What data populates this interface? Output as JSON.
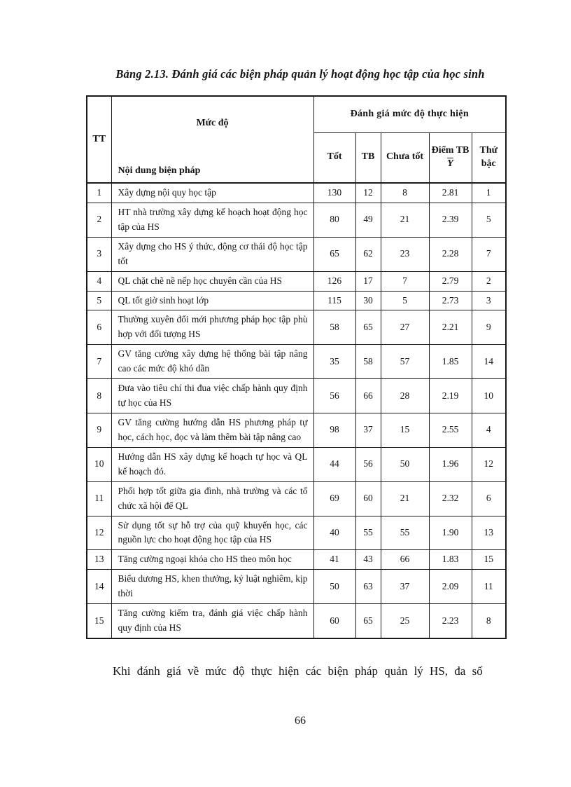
{
  "page": {
    "title": "Bảng 2.13. Đánh giá các biện pháp quản lý hoạt động học tập của học sinh",
    "closing_paragraph": "Khi đánh giá về mức độ thực hiện các biện pháp quản lý HS, đa số",
    "page_number": "66"
  },
  "table": {
    "header": {
      "tt": "TT",
      "muc_do": "Mức độ",
      "noi_dung": "Nội dung biện pháp",
      "group": "Đánh giá mức độ thực hiện",
      "tot": "Tốt",
      "tb": "TB",
      "chua_tot": "Chưa tốt",
      "diem_tb": "Điểm TB",
      "diem_tb_symbol": "Y",
      "thu_bac": "Thứ bậc"
    },
    "rows": [
      {
        "tt": "1",
        "content": "Xây dựng nội quy học tập",
        "tot": "130",
        "tb": "12",
        "chua_tot": "8",
        "diem_tb": "2.81",
        "thu_bac": "1"
      },
      {
        "tt": "2",
        "content": "HT nhà trường xây dựng kế hoạch hoạt động học tập của HS",
        "tot": "80",
        "tb": "49",
        "chua_tot": "21",
        "diem_tb": "2.39",
        "thu_bac": "5"
      },
      {
        "tt": "3",
        "content": "Xây dựng cho HS ý thức, động cơ thái độ học tập tốt",
        "tot": "65",
        "tb": "62",
        "chua_tot": "23",
        "diem_tb": "2.28",
        "thu_bac": "7"
      },
      {
        "tt": "4",
        "content": "QL chặt chẽ nề nếp học chuyên cần của HS",
        "tot": "126",
        "tb": "17",
        "chua_tot": "7",
        "diem_tb": "2.79",
        "thu_bac": "2"
      },
      {
        "tt": "5",
        "content": "QL tốt giờ sinh hoạt lớp",
        "tot": "115",
        "tb": "30",
        "chua_tot": "5",
        "diem_tb": "2.73",
        "thu_bac": "3"
      },
      {
        "tt": "6",
        "content": "Thường xuyên đổi mới phương pháp học tập phù hợp với đối tượng HS",
        "tot": "58",
        "tb": "65",
        "chua_tot": "27",
        "diem_tb": "2.21",
        "thu_bac": "9"
      },
      {
        "tt": "7",
        "content": "GV tăng cường xây dựng hệ thống bài tập nâng cao các mức độ khó dần",
        "tot": "35",
        "tb": "58",
        "chua_tot": "57",
        "diem_tb": "1.85",
        "thu_bac": "14"
      },
      {
        "tt": "8",
        "content": "Đưa vào tiêu chí thi đua việc chấp hành quy định tự học của HS",
        "tot": "56",
        "tb": "66",
        "chua_tot": "28",
        "diem_tb": "2.19",
        "thu_bac": "10"
      },
      {
        "tt": "9",
        "content": "GV tăng cường hướng dẫn HS phương pháp tự học, cách học, đọc và làm thêm bài tập nâng cao",
        "tot": "98",
        "tb": "37",
        "chua_tot": "15",
        "diem_tb": "2.55",
        "thu_bac": "4"
      },
      {
        "tt": "10",
        "content": "Hướng dẫn HS xây dựng kế hoạch tự học và QL kế hoạch đó.",
        "tot": "44",
        "tb": "56",
        "chua_tot": "50",
        "diem_tb": "1.96",
        "thu_bac": "12"
      },
      {
        "tt": "11",
        "content": "Phối hợp tốt giữa gia đình, nhà trường và các tổ chức xã hội để QL",
        "tot": "69",
        "tb": "60",
        "chua_tot": "21",
        "diem_tb": "2.32",
        "thu_bac": "6"
      },
      {
        "tt": "12",
        "content": "Sử dụng tốt sự hỗ trợ của quỹ khuyến học, các nguồn lực cho hoạt động học tập của HS",
        "tot": "40",
        "tb": "55",
        "chua_tot": "55",
        "diem_tb": "1.90",
        "thu_bac": "13"
      },
      {
        "tt": "13",
        "content": "Tăng cường ngoại khóa cho HS theo môn học",
        "tot": "41",
        "tb": "43",
        "chua_tot": "66",
        "diem_tb": "1.83",
        "thu_bac": "15"
      },
      {
        "tt": "14",
        "content": "Biểu dương HS, khen thưởng, kỷ luật nghiêm, kịp thời",
        "tot": "50",
        "tb": "63",
        "chua_tot": "37",
        "diem_tb": "2.09",
        "thu_bac": "11"
      },
      {
        "tt": "15",
        "content": "Tăng cường kiểm tra, đánh giá việc chấp hành quy định của HS",
        "tot": "60",
        "tb": "65",
        "chua_tot": "25",
        "diem_tb": "2.23",
        "thu_bac": "8"
      }
    ]
  }
}
